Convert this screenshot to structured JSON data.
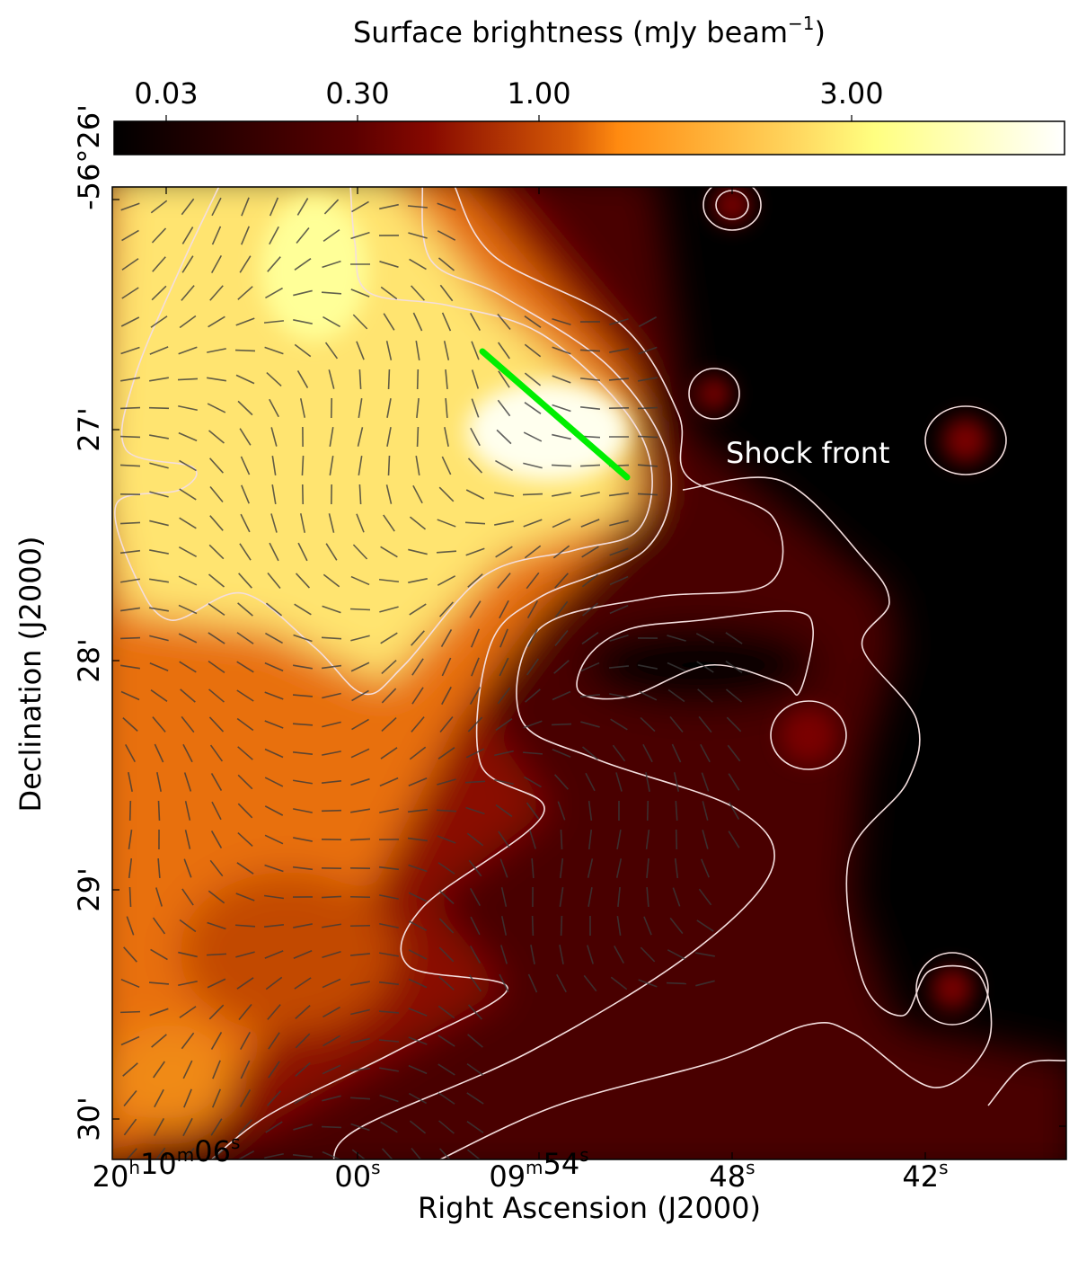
{
  "chart_data": {
    "type": "heatmap",
    "colormap": "afmhot",
    "colorbar": {
      "label": "Surface brightness (mJy beam",
      "label_superscript": "−1",
      "label_close": ")",
      "ticks": [
        "0.03",
        "0.30",
        "1.00",
        "3.00"
      ],
      "tick_values": [
        0.03,
        0.3,
        1.0,
        3.0
      ],
      "placement": "top"
    },
    "xlabel": "Right Ascension (J2000)",
    "ylabel": "Declination (J2000)",
    "xticks": [
      {
        "main": "20",
        "u1": "h",
        "m": "10",
        "u2": "m",
        "s": "06",
        "u3": "s"
      },
      {
        "main": "",
        "u1": "",
        "m": "",
        "u2": "",
        "s": "00",
        "u3": "s"
      },
      {
        "main": "",
        "u1": "",
        "m": "09",
        "u2": "m",
        "s": "54",
        "u3": "s"
      },
      {
        "main": "",
        "u1": "",
        "m": "",
        "u2": "",
        "s": "48",
        "u3": "s"
      },
      {
        "main": "",
        "u1": "",
        "m": "",
        "u2": "",
        "s": "42",
        "u3": "s"
      }
    ],
    "yticks": [
      "-56°26'",
      "27'",
      "28'",
      "29'",
      "30'"
    ],
    "annotation": {
      "text": "Shock front",
      "color": "#ffffff"
    },
    "overlays": {
      "contours": "white",
      "polarization_vectors": "dark grey",
      "shock_line_color": "#00ee00"
    }
  }
}
